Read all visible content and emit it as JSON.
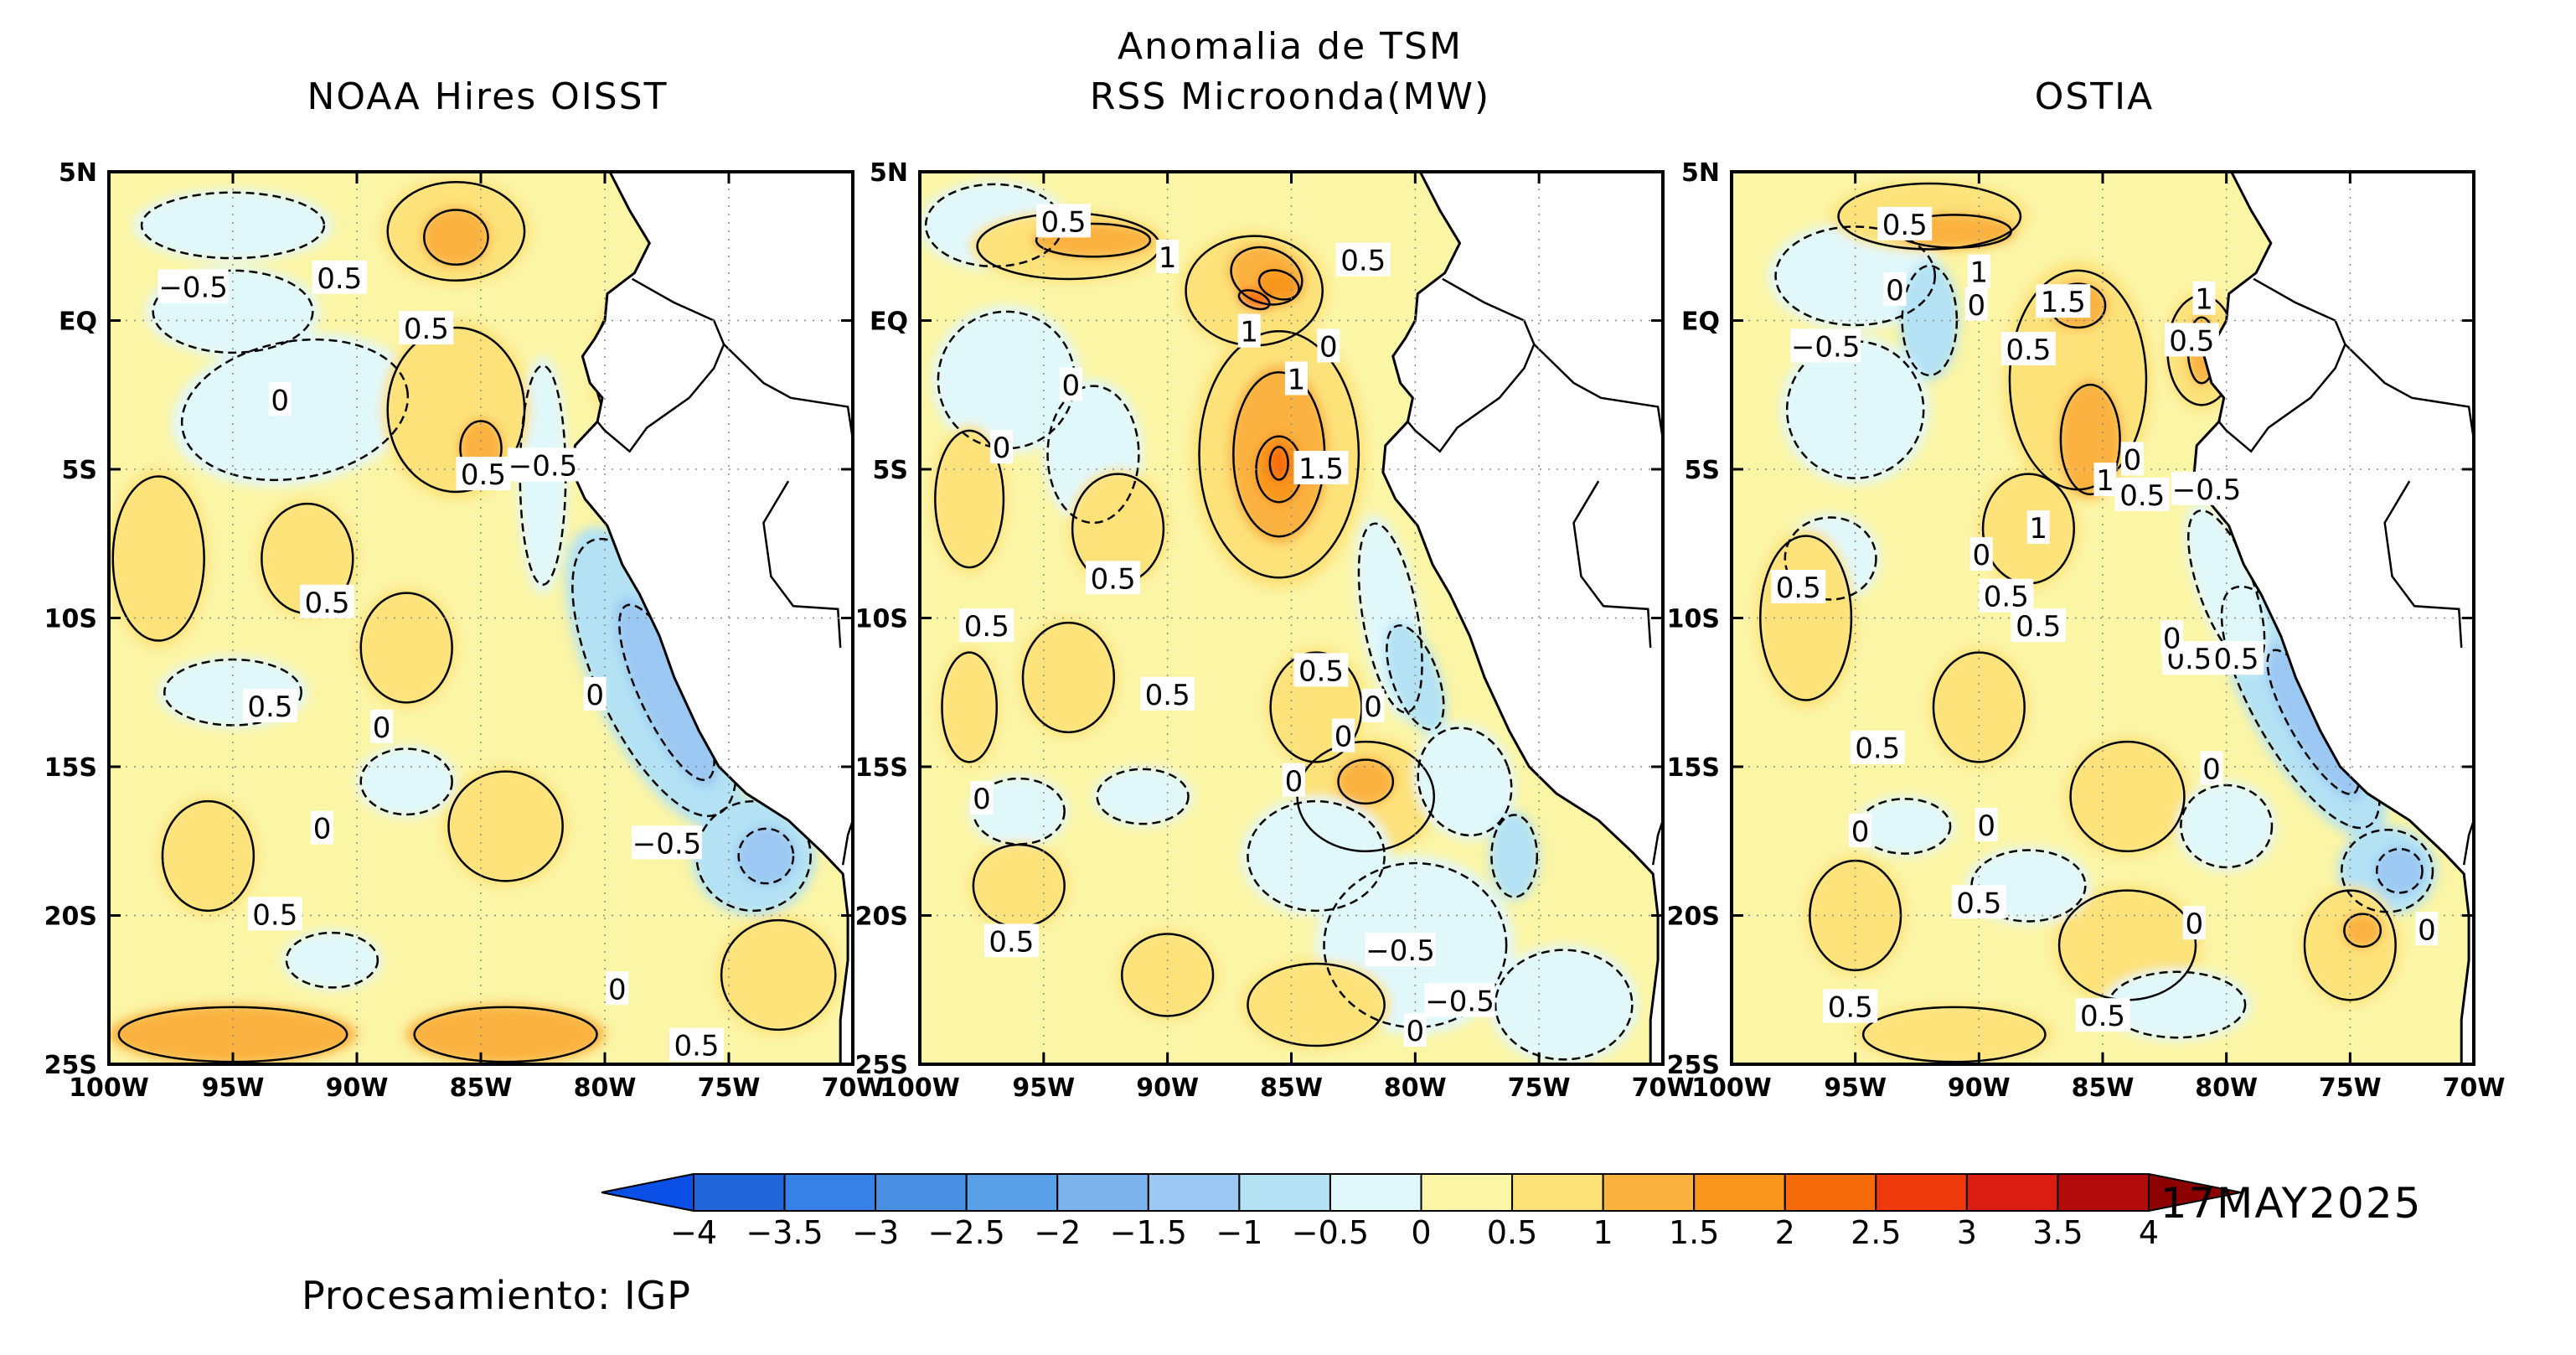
{
  "figure": {
    "main_title_line1": "Anomalia de TSM",
    "date": "17MAY2025",
    "credit": "Procesamiento: IGP"
  },
  "panels": [
    {
      "id": "noaa",
      "title": "NOAA Hires OISST",
      "title_line2": "",
      "contour_labels": [
        {
          "text": "-0.5",
          "lon": -96.6,
          "lat": 1.1
        },
        {
          "text": "0.5",
          "lon": -90.7,
          "lat": 1.4
        },
        {
          "text": "0.5",
          "lon": -87.2,
          "lat": -0.3
        },
        {
          "text": "0",
          "lon": -93.1,
          "lat": -2.7
        },
        {
          "text": "0.5",
          "lon": -84.9,
          "lat": -5.2
        },
        {
          "text": "-0.5",
          "lon": -82.5,
          "lat": -4.9
        },
        {
          "text": "0.5",
          "lon": -91.2,
          "lat": -9.5
        },
        {
          "text": "0.5",
          "lon": -93.5,
          "lat": -13.0
        },
        {
          "text": "0",
          "lon": -89.0,
          "lat": -13.7
        },
        {
          "text": "0",
          "lon": -80.4,
          "lat": -12.6
        },
        {
          "text": "0",
          "lon": -91.4,
          "lat": -17.1
        },
        {
          "text": "-0.5",
          "lon": -77.5,
          "lat": -17.6
        },
        {
          "text": "0.5",
          "lon": -93.3,
          "lat": -20.0
        },
        {
          "text": "0",
          "lon": -79.5,
          "lat": -22.5
        },
        {
          "text": "0.5",
          "lon": -76.3,
          "lat": -24.4
        }
      ]
    },
    {
      "id": "rss",
      "title": "RSS Microonda(MW)",
      "title_line2": "",
      "contour_labels": [
        {
          "text": "0.5",
          "lon": -94.2,
          "lat": 3.3
        },
        {
          "text": "1",
          "lon": -90.0,
          "lat": 2.1
        },
        {
          "text": "0.5",
          "lon": -82.1,
          "lat": 2.0
        },
        {
          "text": "1",
          "lon": -86.7,
          "lat": -0.4
        },
        {
          "text": "1",
          "lon": -84.8,
          "lat": -2.0
        },
        {
          "text": "0",
          "lon": -83.5,
          "lat": -0.9
        },
        {
          "text": "0",
          "lon": -93.9,
          "lat": -2.2
        },
        {
          "text": "0",
          "lon": -96.7,
          "lat": -4.3
        },
        {
          "text": "1.5",
          "lon": -83.8,
          "lat": -5.0
        },
        {
          "text": "0.5",
          "lon": -92.2,
          "lat": -8.7
        },
        {
          "text": "0.5",
          "lon": -97.3,
          "lat": -10.3
        },
        {
          "text": "0.5",
          "lon": -83.8,
          "lat": -11.8
        },
        {
          "text": "0.5",
          "lon": -90.0,
          "lat": -12.6
        },
        {
          "text": "0",
          "lon": -81.7,
          "lat": -13.0
        },
        {
          "text": "0",
          "lon": -82.9,
          "lat": -14.0
        },
        {
          "text": "0",
          "lon": -84.9,
          "lat": -15.5
        },
        {
          "text": "0",
          "lon": -97.5,
          "lat": -16.1
        },
        {
          "text": "0.5",
          "lon": -96.3,
          "lat": -20.9
        },
        {
          "text": "-0.5",
          "lon": -80.6,
          "lat": -21.2
        },
        {
          "text": "-0.5",
          "lon": -78.2,
          "lat": -22.9
        },
        {
          "text": "0",
          "lon": -80.0,
          "lat": -23.9
        }
      ]
    },
    {
      "id": "ostia",
      "title": "OSTIA",
      "title_line2": "",
      "contour_labels": [
        {
          "text": "0.5",
          "lon": -93.0,
          "lat": 3.2
        },
        {
          "text": "1",
          "lon": -90.0,
          "lat": 1.6
        },
        {
          "text": "0",
          "lon": -93.4,
          "lat": 1.0
        },
        {
          "text": "0",
          "lon": -90.1,
          "lat": 0.5
        },
        {
          "text": "1.5",
          "lon": -86.6,
          "lat": 0.6
        },
        {
          "text": "1",
          "lon": -80.9,
          "lat": 0.7
        },
        {
          "text": "0.5",
          "lon": -81.4,
          "lat": -0.7
        },
        {
          "text": "-0.5",
          "lon": -96.2,
          "lat": -0.9
        },
        {
          "text": "0.5",
          "lon": -88.0,
          "lat": -1.0
        },
        {
          "text": "0",
          "lon": -83.8,
          "lat": -4.7
        },
        {
          "text": "1",
          "lon": -84.9,
          "lat": -5.4
        },
        {
          "text": "0.5",
          "lon": -83.4,
          "lat": -5.9
        },
        {
          "text": "-0.5",
          "lon": -80.8,
          "lat": -5.7
        },
        {
          "text": "1",
          "lon": -87.6,
          "lat": -7.0
        },
        {
          "text": "0",
          "lon": -89.9,
          "lat": -7.9
        },
        {
          "text": "0.5",
          "lon": -97.3,
          "lat": -9.0
        },
        {
          "text": "0.5",
          "lon": -88.9,
          "lat": -9.3
        },
        {
          "text": "0.5",
          "lon": -87.6,
          "lat": -10.3
        },
        {
          "text": "0.5",
          "lon": -81.5,
          "lat": -11.4
        },
        {
          "text": "0.5",
          "lon": -79.6,
          "lat": -11.4
        },
        {
          "text": "0",
          "lon": -82.2,
          "lat": -10.7
        },
        {
          "text": "0.5",
          "lon": -94.1,
          "lat": -14.4
        },
        {
          "text": "0",
          "lon": -80.6,
          "lat": -15.1
        },
        {
          "text": "0",
          "lon": -94.8,
          "lat": -17.2
        },
        {
          "text": "0",
          "lon": -89.7,
          "lat": -17.0
        },
        {
          "text": "0.5",
          "lon": -90.0,
          "lat": -19.6
        },
        {
          "text": "0",
          "lon": -81.3,
          "lat": -20.3
        },
        {
          "text": "0",
          "lon": -71.9,
          "lat": -20.5
        },
        {
          "text": "0.5",
          "lon": -95.2,
          "lat": -23.1
        },
        {
          "text": "0.5",
          "lon": -85.0,
          "lat": -23.4
        }
      ]
    }
  ],
  "axes": {
    "x_ticks": [
      "100W",
      "95W",
      "90W",
      "85W",
      "80W",
      "75W",
      "70W"
    ],
    "x_values": [
      -100,
      -95,
      -90,
      -85,
      -80,
      -75,
      -70
    ],
    "y_ticks": [
      "5N",
      "EQ",
      "5S",
      "10S",
      "15S",
      "20S",
      "25S"
    ],
    "y_values": [
      5,
      0,
      -5,
      -10,
      -15,
      -20,
      -25
    ],
    "xlim": [
      -100,
      -70
    ],
    "ylim": [
      -25,
      5
    ]
  },
  "colorbar": {
    "labels": [
      "−4",
      "−3.5",
      "−3",
      "−2.5",
      "−2",
      "−1.5",
      "−1",
      "−0.5",
      "0",
      "0.5",
      "1",
      "1.5",
      "2",
      "2.5",
      "3",
      "3.5",
      "4"
    ],
    "bounds": [
      -4,
      -3.5,
      -3,
      -2.5,
      -2,
      -1.5,
      -1,
      -0.5,
      0,
      0.5,
      1,
      1.5,
      2,
      2.5,
      3,
      3.5,
      4
    ],
    "colors": [
      "#2166d9",
      "#3680e6",
      "#4a90e2",
      "#5aa0e8",
      "#7db4ee",
      "#9bc8f2",
      "#b4e2f4",
      "#e1f8fb",
      "#fbf5a6",
      "#fde27a",
      "#fbb23f",
      "#f8961b",
      "#f76a0a",
      "#ee3a0d",
      "#d91d12",
      "#b30b0b"
    ],
    "under_color": "#0a50e6",
    "over_color": "#8c0000"
  },
  "map_colors": {
    "land": "#ffffff",
    "base": "#fbf5a6",
    "warm": "#fde27a",
    "warmer": "#fbb23f",
    "hot": "#f8961b",
    "hotter": "#f76a0a",
    "cool": "#e1f8fb",
    "cooler": "#b4e2f4",
    "cold": "#9bc8f2",
    "colder": "#7db4ee",
    "coldest": "#5aa0e8"
  }
}
